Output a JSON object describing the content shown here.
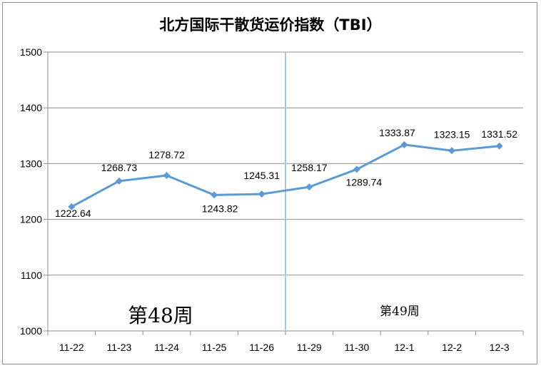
{
  "chart_data": {
    "type": "line",
    "title": "北方国际干散货运价指数（TBI）",
    "xlabel": "",
    "ylabel": "",
    "categories": [
      "11-22",
      "11-23",
      "11-24",
      "11-25",
      "11-26",
      "11-29",
      "11-30",
      "12-1",
      "12-2",
      "12-3"
    ],
    "series": [
      {
        "values": [
          1222.64,
          1268.73,
          1278.72,
          1243.82,
          1245.31,
          1258.17,
          1289.74,
          1333.87,
          1323.15,
          1331.52
        ],
        "data_labels": [
          "1222.64",
          "1268.73",
          "1278.72",
          "1243.82",
          "1245.31",
          "1258.17",
          "1289.74",
          "1333.87",
          "1323.15",
          "1331.52"
        ],
        "color": "#5b9bd5",
        "marker": "diamond"
      }
    ],
    "ylim": [
      1000,
      1500
    ],
    "yticks": [
      1000,
      1100,
      1200,
      1300,
      1400,
      1500
    ],
    "grid": true,
    "legend": "none",
    "annotations": [
      {
        "text": "第48周"
      },
      {
        "text": "第49周"
      }
    ],
    "divider_after_category": "11-26",
    "divider_color": "#a6c8e6"
  }
}
